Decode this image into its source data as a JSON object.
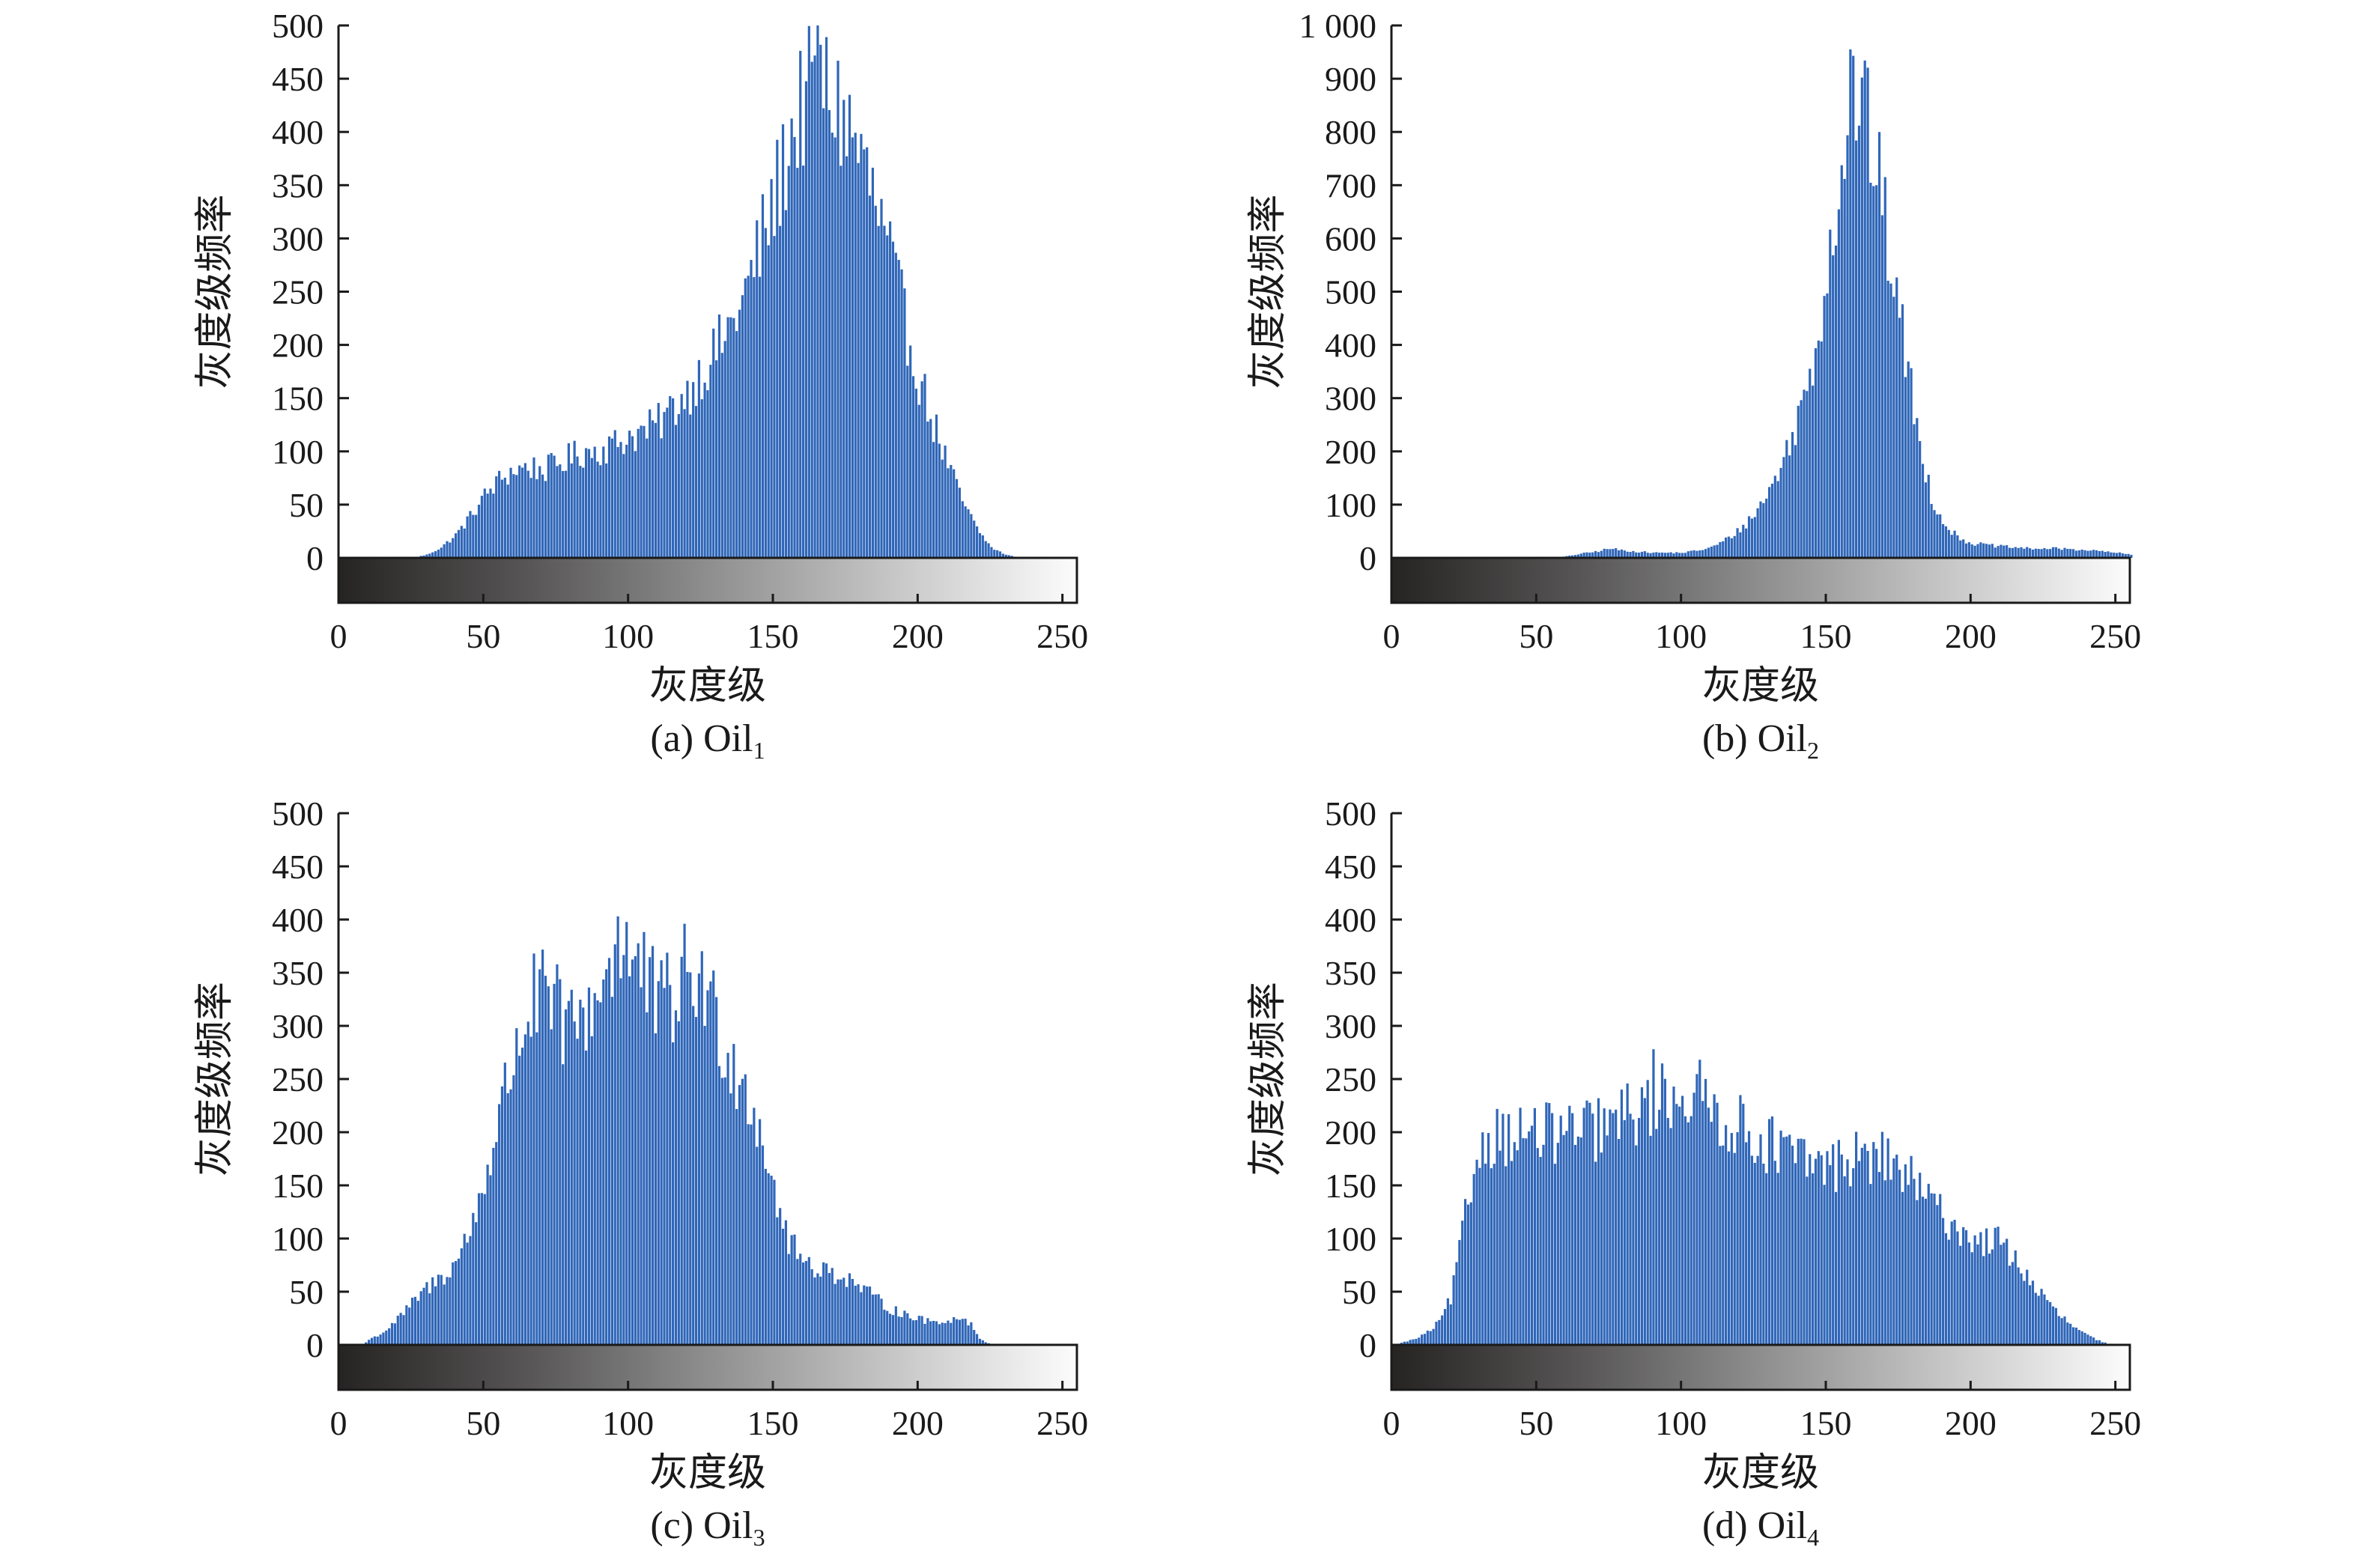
{
  "chart_data": [
    {
      "type": "bar",
      "id": "oil1",
      "caption_prefix": "(a) Oil",
      "caption_subscript": "1",
      "xlabel": "灰度级",
      "ylabel": "灰度级频率",
      "xlim": [
        0,
        255
      ],
      "ylim": [
        0,
        500
      ],
      "yticks": [
        "0",
        "50",
        "100",
        "150",
        "200",
        "250",
        "300",
        "350",
        "400",
        "450",
        "500"
      ],
      "xticks": [
        "0",
        "50",
        "100",
        "150",
        "200",
        "250"
      ],
      "colorbar": "grayscale 0-255",
      "profile": [
        [
          0,
          0
        ],
        [
          25,
          0
        ],
        [
          30,
          3
        ],
        [
          35,
          10
        ],
        [
          40,
          22
        ],
        [
          45,
          40
        ],
        [
          50,
          60
        ],
        [
          55,
          75
        ],
        [
          60,
          85
        ],
        [
          65,
          88
        ],
        [
          70,
          85
        ],
        [
          75,
          90
        ],
        [
          80,
          98
        ],
        [
          85,
          103
        ],
        [
          90,
          105
        ],
        [
          95,
          110
        ],
        [
          100,
          118
        ],
        [
          105,
          122
        ],
        [
          110,
          130
        ],
        [
          115,
          145
        ],
        [
          120,
          160
        ],
        [
          125,
          180
        ],
        [
          130,
          200
        ],
        [
          135,
          225
        ],
        [
          140,
          255
        ],
        [
          145,
          300
        ],
        [
          150,
          345
        ],
        [
          155,
          400
        ],
        [
          160,
          440
        ],
        [
          165,
          455
        ],
        [
          170,
          445
        ],
        [
          175,
          420
        ],
        [
          180,
          390
        ],
        [
          185,
          340
        ],
        [
          190,
          290
        ],
        [
          195,
          230
        ],
        [
          200,
          175
        ],
        [
          205,
          130
        ],
        [
          210,
          90
        ],
        [
          215,
          55
        ],
        [
          220,
          28
        ],
        [
          225,
          10
        ],
        [
          230,
          3
        ],
        [
          235,
          0
        ],
        [
          255,
          0
        ]
      ],
      "peak": {
        "x": 165,
        "y": 500
      }
    },
    {
      "type": "bar",
      "id": "oil2",
      "caption_prefix": "(b) Oil",
      "caption_subscript": "2",
      "xlabel": "灰度级",
      "ylabel": "灰度级频率",
      "xlim": [
        0,
        255
      ],
      "ylim": [
        0,
        1000
      ],
      "yticks": [
        "0",
        "100",
        "200",
        "300",
        "400",
        "500",
        "600",
        "700",
        "800",
        "900",
        "1 000"
      ],
      "xticks": [
        "0",
        "50",
        "100",
        "150",
        "200",
        "250"
      ],
      "colorbar": "grayscale 0-255",
      "profile": [
        [
          0,
          0
        ],
        [
          55,
          0
        ],
        [
          60,
          3
        ],
        [
          65,
          8
        ],
        [
          70,
          12
        ],
        [
          75,
          18
        ],
        [
          80,
          14
        ],
        [
          85,
          12
        ],
        [
          90,
          10
        ],
        [
          95,
          10
        ],
        [
          100,
          10
        ],
        [
          105,
          14
        ],
        [
          110,
          20
        ],
        [
          115,
          35
        ],
        [
          120,
          55
        ],
        [
          125,
          85
        ],
        [
          130,
          130
        ],
        [
          135,
          190
        ],
        [
          140,
          270
        ],
        [
          145,
          380
        ],
        [
          150,
          560
        ],
        [
          155,
          760
        ],
        [
          158,
          880
        ],
        [
          160,
          900
        ],
        [
          163,
          860
        ],
        [
          166,
          780
        ],
        [
          170,
          650
        ],
        [
          175,
          470
        ],
        [
          178,
          360
        ],
        [
          182,
          220
        ],
        [
          186,
          120
        ],
        [
          190,
          70
        ],
        [
          195,
          40
        ],
        [
          200,
          28
        ],
        [
          210,
          22
        ],
        [
          220,
          18
        ],
        [
          230,
          18
        ],
        [
          240,
          15
        ],
        [
          250,
          10
        ],
        [
          255,
          6
        ]
      ],
      "peak": {
        "x": 158,
        "y": 955
      }
    },
    {
      "type": "bar",
      "id": "oil3",
      "caption_prefix": "(c) Oil",
      "caption_subscript": "3",
      "xlabel": "灰度级",
      "ylabel": "灰度级频率",
      "xlim": [
        0,
        255
      ],
      "ylim": [
        0,
        500
      ],
      "yticks": [
        "0",
        "50",
        "100",
        "150",
        "200",
        "250",
        "300",
        "350",
        "400",
        "450",
        "500"
      ],
      "xticks": [
        "0",
        "50",
        "100",
        "150",
        "200",
        "250"
      ],
      "colorbar": "grayscale 0-255",
      "profile": [
        [
          0,
          0
        ],
        [
          8,
          0
        ],
        [
          10,
          5
        ],
        [
          15,
          12
        ],
        [
          20,
          25
        ],
        [
          25,
          40
        ],
        [
          30,
          55
        ],
        [
          35,
          65
        ],
        [
          40,
          80
        ],
        [
          45,
          110
        ],
        [
          50,
          160
        ],
        [
          55,
          220
        ],
        [
          60,
          280
        ],
        [
          65,
          325
        ],
        [
          70,
          335
        ],
        [
          75,
          320
        ],
        [
          80,
          305
        ],
        [
          85,
          320
        ],
        [
          90,
          350
        ],
        [
          95,
          375
        ],
        [
          100,
          380
        ],
        [
          105,
          355
        ],
        [
          110,
          325
        ],
        [
          115,
          335
        ],
        [
          120,
          360
        ],
        [
          125,
          350
        ],
        [
          130,
          315
        ],
        [
          135,
          280
        ],
        [
          140,
          250
        ],
        [
          145,
          215
        ],
        [
          150,
          150
        ],
        [
          155,
          100
        ],
        [
          160,
          82
        ],
        [
          165,
          75
        ],
        [
          170,
          70
        ],
        [
          175,
          65
        ],
        [
          180,
          55
        ],
        [
          185,
          45
        ],
        [
          190,
          35
        ],
        [
          195,
          30
        ],
        [
          200,
          25
        ],
        [
          205,
          22
        ],
        [
          210,
          24
        ],
        [
          215,
          26
        ],
        [
          218,
          20
        ],
        [
          221,
          6
        ],
        [
          225,
          0
        ],
        [
          255,
          0
        ]
      ],
      "peak": {
        "x": 96,
        "y": 403
      }
    },
    {
      "type": "bar",
      "id": "oil4",
      "caption_prefix": "(d) Oil",
      "caption_subscript": "4",
      "xlabel": "灰度级",
      "ylabel": "灰度级频率",
      "xlim": [
        0,
        255
      ],
      "ylim": [
        0,
        500
      ],
      "yticks": [
        "0",
        "50",
        "100",
        "150",
        "200",
        "250",
        "300",
        "350",
        "400",
        "450",
        "500"
      ],
      "xticks": [
        "0",
        "50",
        "100",
        "150",
        "200",
        "250"
      ],
      "colorbar": "grayscale 0-255",
      "profile": [
        [
          0,
          0
        ],
        [
          3,
          2
        ],
        [
          8,
          6
        ],
        [
          12,
          12
        ],
        [
          16,
          22
        ],
        [
          20,
          45
        ],
        [
          23,
          90
        ],
        [
          26,
          140
        ],
        [
          29,
          180
        ],
        [
          32,
          200
        ],
        [
          36,
          205
        ],
        [
          45,
          203
        ],
        [
          55,
          205
        ],
        [
          65,
          205
        ],
        [
          75,
          212
        ],
        [
          85,
          228
        ],
        [
          92,
          240
        ],
        [
          100,
          245
        ],
        [
          106,
          240
        ],
        [
          112,
          225
        ],
        [
          120,
          210
        ],
        [
          130,
          195
        ],
        [
          140,
          180
        ],
        [
          150,
          172
        ],
        [
          158,
          180
        ],
        [
          165,
          182
        ],
        [
          172,
          178
        ],
        [
          178,
          162
        ],
        [
          185,
          140
        ],
        [
          192,
          120
        ],
        [
          198,
          105
        ],
        [
          204,
          100
        ],
        [
          208,
          102
        ],
        [
          213,
          90
        ],
        [
          218,
          70
        ],
        [
          223,
          52
        ],
        [
          228,
          35
        ],
        [
          233,
          22
        ],
        [
          238,
          12
        ],
        [
          243,
          5
        ],
        [
          248,
          0
        ],
        [
          255,
          0
        ]
      ],
      "peak": {
        "x": 90,
        "y": 278
      }
    }
  ]
}
